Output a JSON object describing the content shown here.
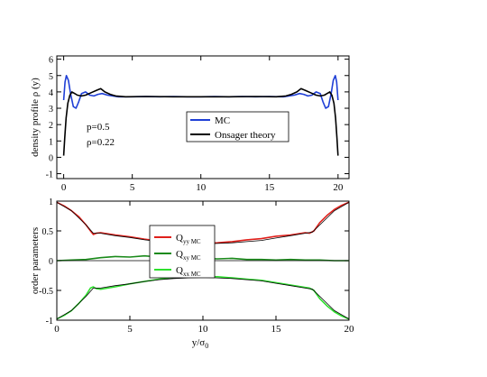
{
  "chart_data": [
    {
      "type": "line",
      "ylabel": "density profile ρ (y)",
      "xlim": [
        -0.5,
        20.8
      ],
      "ylim": [
        -1.3,
        6.2
      ],
      "xticks": [
        "0",
        "5",
        "10",
        "15",
        "20"
      ],
      "yticks": [
        "-1",
        "0",
        "1",
        "2",
        "3",
        "4",
        "5",
        "6"
      ],
      "annotations": [
        "p=0.5",
        "ρ=0.22"
      ],
      "legend": "center-right",
      "series": [
        {
          "name": "MC",
          "color": "#1f3fd6",
          "x": [
            0,
            0.1,
            0.2,
            0.35,
            0.5,
            0.7,
            0.9,
            1.1,
            1.3,
            1.6,
            1.9,
            2.2,
            2.5,
            2.8,
            3.2,
            3.6,
            4.0,
            5.0,
            6.0,
            7.0,
            8.0,
            9.0,
            10.0,
            11.0,
            12.0,
            13.0,
            14.0,
            15.0,
            16.0,
            16.4,
            16.8,
            17.2,
            17.5,
            17.8,
            18.1,
            18.4,
            18.7,
            18.9,
            19.1,
            19.3,
            19.5,
            19.65,
            19.8,
            19.9,
            20.0
          ],
          "y": [
            3.5,
            4.6,
            5.0,
            4.7,
            3.9,
            3.1,
            3.0,
            3.4,
            3.9,
            4.0,
            3.8,
            3.75,
            3.85,
            3.9,
            3.8,
            3.75,
            3.7,
            3.7,
            3.72,
            3.7,
            3.72,
            3.7,
            3.7,
            3.72,
            3.7,
            3.72,
            3.7,
            3.72,
            3.7,
            3.75,
            3.8,
            3.9,
            3.85,
            3.75,
            3.8,
            4.0,
            3.9,
            3.4,
            3.0,
            3.1,
            3.9,
            4.7,
            5.0,
            4.6,
            3.5
          ]
        },
        {
          "name": "Onsager theory",
          "color": "#000000",
          "x": [
            0,
            0.08,
            0.18,
            0.3,
            0.45,
            0.6,
            0.8,
            1.0,
            1.3,
            1.6,
            2.0,
            2.4,
            2.7,
            3.0,
            3.4,
            3.8,
            4.5,
            6.0,
            8.0,
            10.0,
            12.0,
            14.0,
            15.5,
            16.2,
            16.6,
            17.0,
            17.3,
            17.6,
            18.0,
            18.4,
            18.7,
            19.0,
            19.2,
            19.4,
            19.55,
            19.7,
            19.82,
            19.92,
            20.0
          ],
          "y": [
            0.1,
            1.2,
            2.4,
            3.3,
            3.8,
            4.0,
            3.9,
            3.8,
            3.75,
            3.8,
            3.95,
            4.1,
            4.2,
            4.0,
            3.85,
            3.75,
            3.7,
            3.72,
            3.7,
            3.7,
            3.7,
            3.72,
            3.7,
            3.75,
            3.85,
            4.0,
            4.2,
            4.1,
            3.95,
            3.8,
            3.75,
            3.8,
            3.9,
            4.0,
            3.8,
            3.3,
            2.4,
            1.2,
            0.1
          ]
        }
      ]
    },
    {
      "type": "line",
      "xlabel": "y/σ",
      "xlabel_sub": "0",
      "ylabel": "order parameters",
      "xlim": [
        0,
        20
      ],
      "ylim": [
        -1,
        1
      ],
      "xticks": [
        "0",
        "5",
        "10",
        "15",
        "20"
      ],
      "yticks": [
        "-1",
        "-0.5",
        "0",
        "0.5",
        "1"
      ],
      "legend": "center",
      "series": [
        {
          "name": "Q",
          "name_sub": "yy MC",
          "color": "#e0201b",
          "x": [
            0,
            0.5,
            1.0,
            1.5,
            2.0,
            2.3,
            2.5,
            2.7,
            3.0,
            4.0,
            5.0,
            6.0,
            7.0,
            8.0,
            9.0,
            10.0,
            11.0,
            12.0,
            13.0,
            14.0,
            15.0,
            16.0,
            17.0,
            17.3,
            17.6,
            18.0,
            18.5,
            19.0,
            19.5,
            20.0
          ],
          "y": [
            0.98,
            0.92,
            0.84,
            0.74,
            0.6,
            0.5,
            0.44,
            0.46,
            0.47,
            0.43,
            0.4,
            0.36,
            0.33,
            0.31,
            0.3,
            0.29,
            0.3,
            0.32,
            0.35,
            0.37,
            0.41,
            0.43,
            0.47,
            0.46,
            0.5,
            0.64,
            0.76,
            0.86,
            0.93,
            0.98
          ]
        },
        {
          "name": "Q",
          "name_sub": "xy MC",
          "color": "#1a8a1a",
          "x": [
            0,
            1,
            2,
            3,
            4,
            5,
            6,
            7,
            8,
            9,
            10,
            11,
            12,
            13,
            14,
            15,
            16,
            17,
            18,
            19,
            20
          ],
          "y": [
            0.0,
            0.01,
            0.02,
            0.05,
            0.07,
            0.06,
            0.08,
            0.06,
            0.07,
            0.05,
            0.04,
            0.03,
            0.04,
            0.02,
            0.02,
            0.01,
            0.02,
            0.01,
            0.01,
            0.0,
            0.0
          ]
        },
        {
          "name": "Q",
          "name_sub": "xx MC",
          "color": "#2ee02e",
          "x": [
            0,
            0.5,
            1.0,
            1.5,
            2.0,
            2.3,
            2.5,
            2.7,
            3.0,
            4.0,
            5.0,
            6.0,
            7.0,
            8.0,
            9.0,
            10.0,
            11.0,
            12.0,
            13.0,
            14.0,
            15.0,
            16.0,
            17.0,
            17.3,
            17.6,
            18.0,
            18.5,
            19.0,
            19.5,
            20.0
          ],
          "y": [
            -0.98,
            -0.92,
            -0.84,
            -0.72,
            -0.58,
            -0.46,
            -0.44,
            -0.47,
            -0.48,
            -0.44,
            -0.39,
            -0.35,
            -0.31,
            -0.28,
            -0.27,
            -0.27,
            -0.27,
            -0.29,
            -0.31,
            -0.33,
            -0.37,
            -0.41,
            -0.45,
            -0.46,
            -0.5,
            -0.64,
            -0.76,
            -0.86,
            -0.93,
            -0.98
          ]
        },
        {
          "name": "",
          "color": "#000000",
          "width": 0.8,
          "x": [
            0,
            1,
            2,
            2.5,
            3,
            4,
            5,
            6,
            7,
            8,
            9,
            10,
            11,
            12,
            13,
            14,
            15,
            16,
            17,
            17.5,
            18,
            19,
            20
          ],
          "y": [
            0.98,
            0.84,
            0.6,
            0.46,
            0.46,
            0.42,
            0.39,
            0.35,
            0.32,
            0.3,
            0.29,
            0.28,
            0.29,
            0.3,
            0.32,
            0.34,
            0.38,
            0.42,
            0.46,
            0.48,
            0.6,
            0.84,
            0.98
          ]
        },
        {
          "name": "",
          "color": "#000000",
          "width": 0.8,
          "x": [
            0,
            20
          ],
          "y": [
            0,
            0
          ]
        },
        {
          "name": "",
          "color": "#000000",
          "width": 0.8,
          "x": [
            0,
            1,
            2,
            2.5,
            3,
            4,
            5,
            6,
            7,
            8,
            9,
            10,
            11,
            12,
            13,
            14,
            15,
            16,
            17,
            17.5,
            18,
            19,
            20
          ],
          "y": [
            -0.98,
            -0.84,
            -0.6,
            -0.46,
            -0.46,
            -0.42,
            -0.39,
            -0.35,
            -0.32,
            -0.3,
            -0.29,
            -0.28,
            -0.29,
            -0.3,
            -0.32,
            -0.34,
            -0.38,
            -0.42,
            -0.46,
            -0.48,
            -0.6,
            -0.84,
            -0.98
          ]
        }
      ]
    }
  ]
}
